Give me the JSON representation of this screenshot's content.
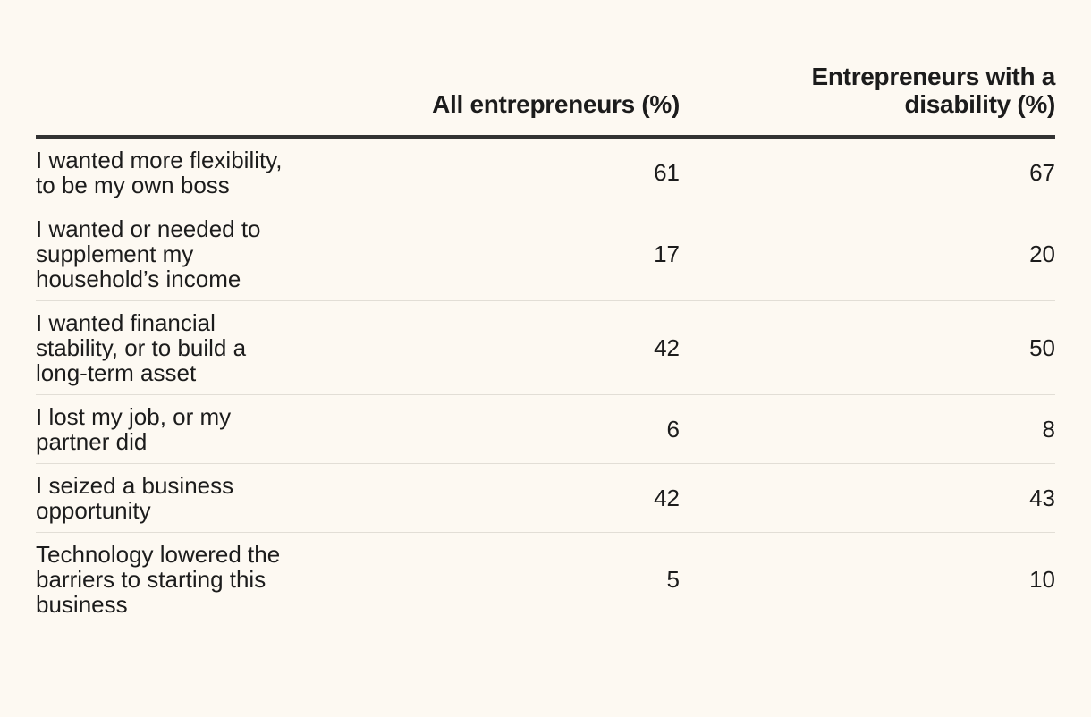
{
  "chart_data": {
    "type": "table",
    "columns": [
      "",
      "All entrepreneurs (%)",
      "Entrepreneurs with a disability (%)"
    ],
    "rows": [
      {
        "label": "I wanted more flexibility, to be my own boss",
        "all": 61,
        "disability": 67
      },
      {
        "label": "I wanted or needed to supplement my household’s income",
        "all": 17,
        "disability": 20
      },
      {
        "label": "I wanted financial stability, or to build a long-term asset",
        "all": 42,
        "disability": 50
      },
      {
        "label": "I lost my job, or my partner did",
        "all": 6,
        "disability": 8
      },
      {
        "label": "I seized a business opportunity",
        "all": 42,
        "disability": 43
      },
      {
        "label": "Technology lowered the barriers to starting this business",
        "all": 5,
        "disability": 10
      }
    ]
  },
  "colors": {
    "background": "#fdf9f2",
    "text": "#1c1c1c",
    "header_rule": "#333333",
    "row_divider": "#e2ded6"
  }
}
